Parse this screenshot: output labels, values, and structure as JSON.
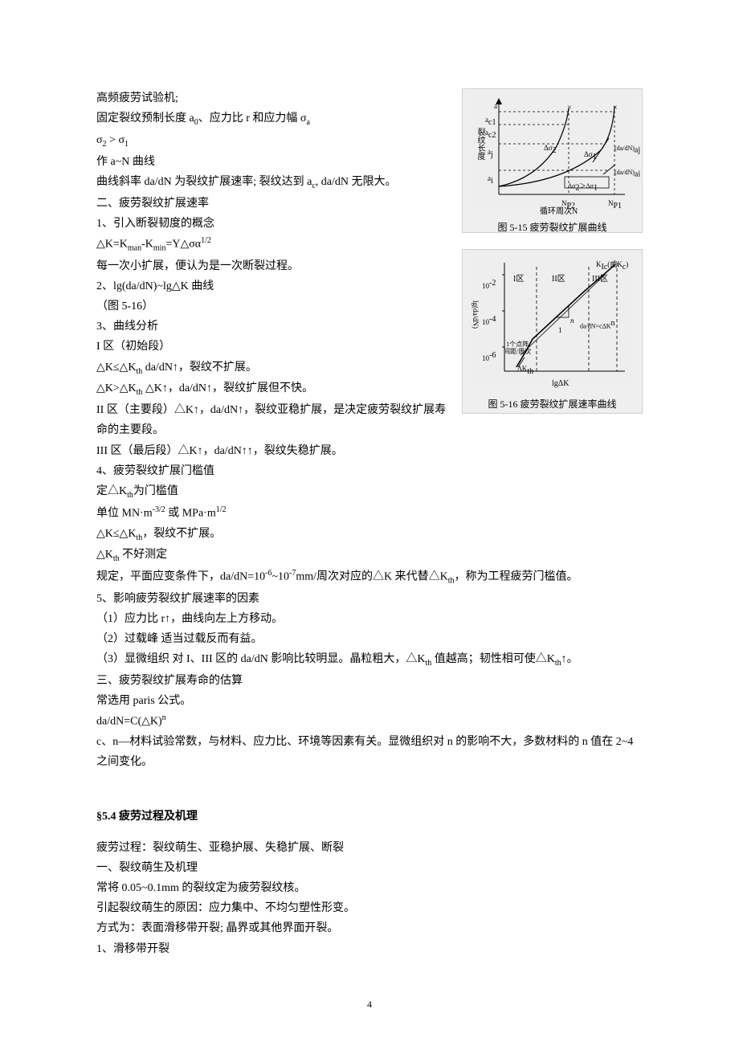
{
  "body": {
    "lines": [
      "高频疲劳试验机;",
      "固定裂纹预制长度 a<sub>0</sub>、应力比 r 和应力幅 σ<sub>a</sub>",
      "σ<sub>2</sub> > σ<sub>1</sub>",
      "作 a~N 曲线",
      "曲线斜率 da/dN 为裂纹扩展速率; 裂纹达到 a<sub>c</sub>, da/dN 无限大。",
      "二、疲劳裂纹扩展速率",
      "1、引入断裂韧度的概念",
      "△K=K<sub>man</sub>-K<sub>min</sub>=Y△σα<sup>1/2</sup>",
      "每一次小扩展，便认为是一次断裂过程。",
      "2、lg(da/dN)~lg△K 曲线",
      "（图 5-16）",
      "3、曲线分析",
      "I 区（初始段）",
      "△K≤△K<sub>th</sub>  da/dN↑，裂纹不扩展。",
      "△K>△K<sub>th</sub>  △K↑，da/dN↑，裂纹扩展但不快。",
      "II 区（主要段）△K↑，da/dN↑，裂纹亚稳扩展，是决定疲劳裂纹扩展寿命的主要段。",
      "III 区（最后段）△K↑，da/dN↑↑，裂纹失稳扩展。",
      "4、疲劳裂纹扩展门槛值",
      "定△K<sub>th</sub>为门槛值",
      "单位 MN·m<sup>-3/2</sup> 或 MPa·m<sup>1/2</sup>",
      "△K≤△K<sub>th</sub>，裂纹不扩展。",
      "△K<sub>th</sub> 不好测定",
      "规定，平面应变条件下，da/dN=10<sup>-6</sup>~10<sup>-7</sup>mm/周次对应的△K 来代替△K<sub>th</sub>，称为工程疲劳门槛值。",
      "5、影响疲劳裂纹扩展速率的因素",
      "（1）应力比 r↑，曲线向左上方移动。",
      "（2）过载峰  适当过载反而有益。",
      "（3）显微组织  对 I、III 区的 da/dN 影响比较明显。晶粒粗大，△K<sub>th</sub> 值越高；韧性相可使△K<sub>th</sub>↑。",
      "三、疲劳裂纹扩展寿命的估算",
      "常选用 paris 公式。",
      "da/dN=C(△K)<sup>n</sup>",
      "c、n—材料试验常数，与材料、应力比、环境等因素有关。显微组织对 n 的影响不大，多数材料的 n 值在 2~4 之间变化。"
    ],
    "section_title": "§5.4 疲劳过程及机理",
    "after_section": [
      "疲劳过程：裂纹萌生、亚稳护展、失稳扩展、断裂",
      "一、裂纹萌生及机理",
      "常将 0.05~0.1mm 的裂纹定为疲劳裂纹核。",
      "引起裂纹萌生的原因：应力集中、不均匀塑性形变。",
      "方式为：表面滑移带开裂; 晶界或其他界面开裂。",
      "1、滑移带开裂"
    ]
  },
  "figure1": {
    "caption": "图 5-15  疲劳裂纹扩展曲线",
    "ylabel": "裂纹长度",
    "xlabel": "循环周次N",
    "labels": {
      "a": "a",
      "ac1": "a<sub>c1</sub>",
      "ac2": "a<sub>c2</sub>",
      "ai": "a<sub>i</sub>",
      "ds1": "Δσ<sub>1</sub>",
      "ds2": "Δσ<sub>2</sub>",
      "cond": "Δσ<sub>2</sub>＞Δσ<sub>1</sub>",
      "np1": "N<sub>P1</sub>",
      "np2": "N<sub>P2</sub>",
      "dadni": "(da/dN)<sub>ai</sub>",
      "dadnj": "(da/dN)<sub>aj</sub>"
    },
    "colors": {
      "bg": "#f0f0f0",
      "axis": "#000000",
      "curve": "#000000",
      "dash": "#000000"
    }
  },
  "figure2": {
    "caption": "图 5-16  疲劳裂纹扩展速率曲线",
    "ylabel": "lg(da/dN)",
    "xlabel": "lgΔK",
    "labels": {
      "y1": "10<sup>-2</sup>",
      "y2": "10<sup>-4</sup>",
      "y3": "10<sup>-6</sup>",
      "reg1": "I区",
      "reg2": "II区",
      "reg3": "III区",
      "kic": "K<sub>Ic</sub>(或K<sub>c</sub>)",
      "dkth": "ΔK<sub>th</sub>",
      "note": "1个点阵\n间距/周次",
      "eq": "da/dN=cΔK<sup>n</sup>",
      "n": "n",
      "one": "1"
    },
    "colors": {
      "bg": "#f0f0f0",
      "axis": "#000000",
      "curve": "#000000"
    }
  },
  "page_number": "4"
}
